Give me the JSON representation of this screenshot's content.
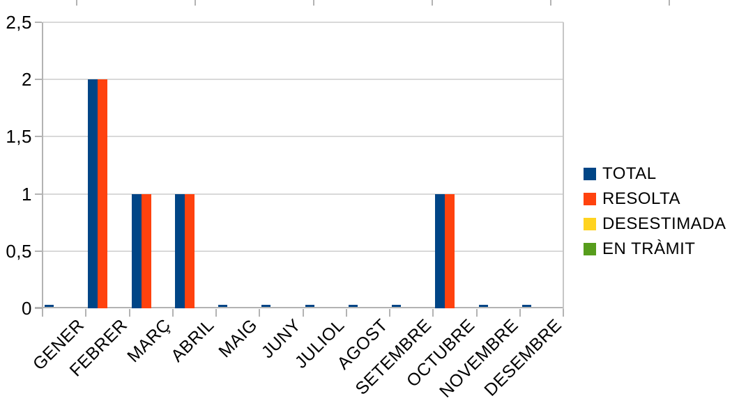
{
  "chart_data": {
    "type": "bar",
    "title": "",
    "xlabel": "",
    "ylabel": "",
    "categories": [
      "GENER",
      "FEBRER",
      "MARÇ",
      "ABRIL",
      "MAIG",
      "JUNY",
      "JULIOL",
      "AGOST",
      "SETEMBRE",
      "OCTUBRE",
      "NOVEMBRE",
      "DESEMBRE"
    ],
    "series": [
      {
        "name": "TOTAL",
        "color": "#004586",
        "values": [
          0,
          2,
          1,
          1,
          0,
          0,
          0,
          0,
          0,
          1,
          0,
          0
        ]
      },
      {
        "name": "RESOLTA",
        "color": "#FF420E",
        "values": [
          0,
          2,
          1,
          1,
          0,
          0,
          0,
          0,
          0,
          1,
          0,
          0
        ]
      },
      {
        "name": "DESESTIMADA",
        "color": "#FFD320",
        "values": [
          0,
          0,
          0,
          0,
          0,
          0,
          0,
          0,
          0,
          0,
          0,
          0
        ]
      },
      {
        "name": "EN TRÀMIT",
        "color": "#579D1C",
        "values": [
          0,
          0,
          0,
          0,
          0,
          0,
          0,
          0,
          0,
          0,
          0,
          0
        ]
      }
    ],
    "ylim": [
      0,
      2.5
    ],
    "y_tick_step": 0.5,
    "y_tick_labels": [
      "0",
      "0,5",
      "1",
      "1,5",
      "2",
      "2,5"
    ],
    "grid": "horizontal",
    "legend_position": "right"
  },
  "colors": {
    "axis": "#b3b3b3",
    "gridline": "#d9d9d9",
    "plot_border": "#c6c6c6",
    "text": "#000000",
    "background": "#ffffff"
  }
}
